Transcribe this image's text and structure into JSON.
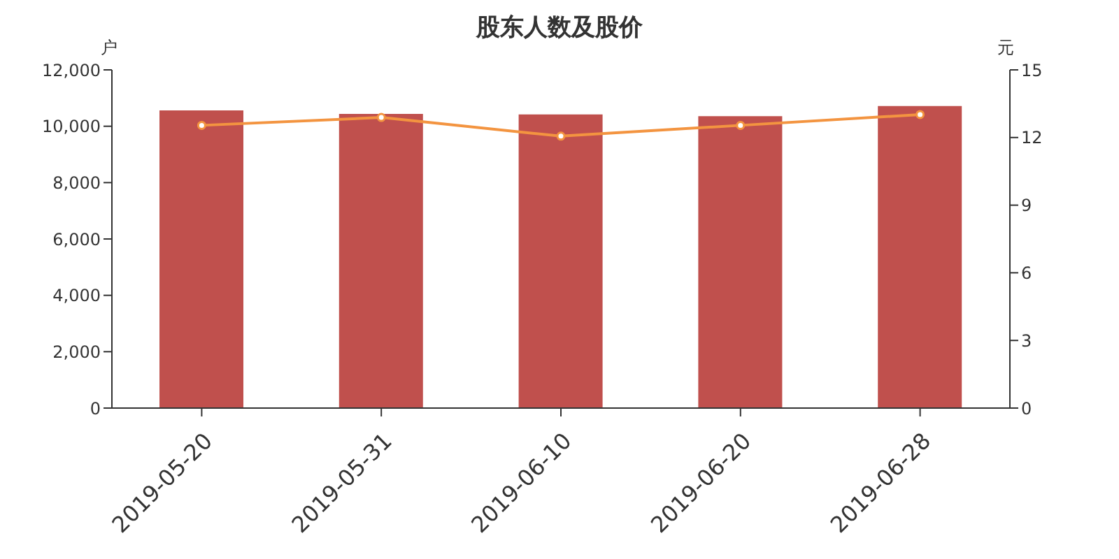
{
  "chart_data": {
    "type": "bar",
    "title": "股东人数及股价",
    "ylabel": "户",
    "y2label": "元",
    "categories": [
      "2019-05-20",
      "2019-05-31",
      "2019-06-10",
      "2019-06-20",
      "2019-06-28"
    ],
    "series": [
      {
        "color": "#c0504d",
        "values": [
          10560,
          10440,
          10420,
          10360,
          10720
        ]
      },
      {
        "type": "line",
        "axis": "y2",
        "color": "#f39440",
        "marker": "circle",
        "values": [
          12.54,
          12.89,
          12.06,
          12.54,
          13.02
        ]
      }
    ],
    "ylim": [
      0,
      12000
    ],
    "yticks": [
      {
        "value": 0,
        "label": "0"
      },
      {
        "value": 2000,
        "label": "2,000"
      },
      {
        "value": 4000,
        "label": "4,000"
      },
      {
        "value": 6000,
        "label": "6,000"
      },
      {
        "value": 8000,
        "label": "8,000"
      },
      {
        "value": 10000,
        "label": "10,000"
      },
      {
        "value": 12000,
        "label": "12,000"
      }
    ],
    "y2lim": [
      0,
      15
    ],
    "y2ticks": [
      0,
      3,
      6,
      9,
      12,
      15
    ],
    "grid": false,
    "legend": false
  }
}
